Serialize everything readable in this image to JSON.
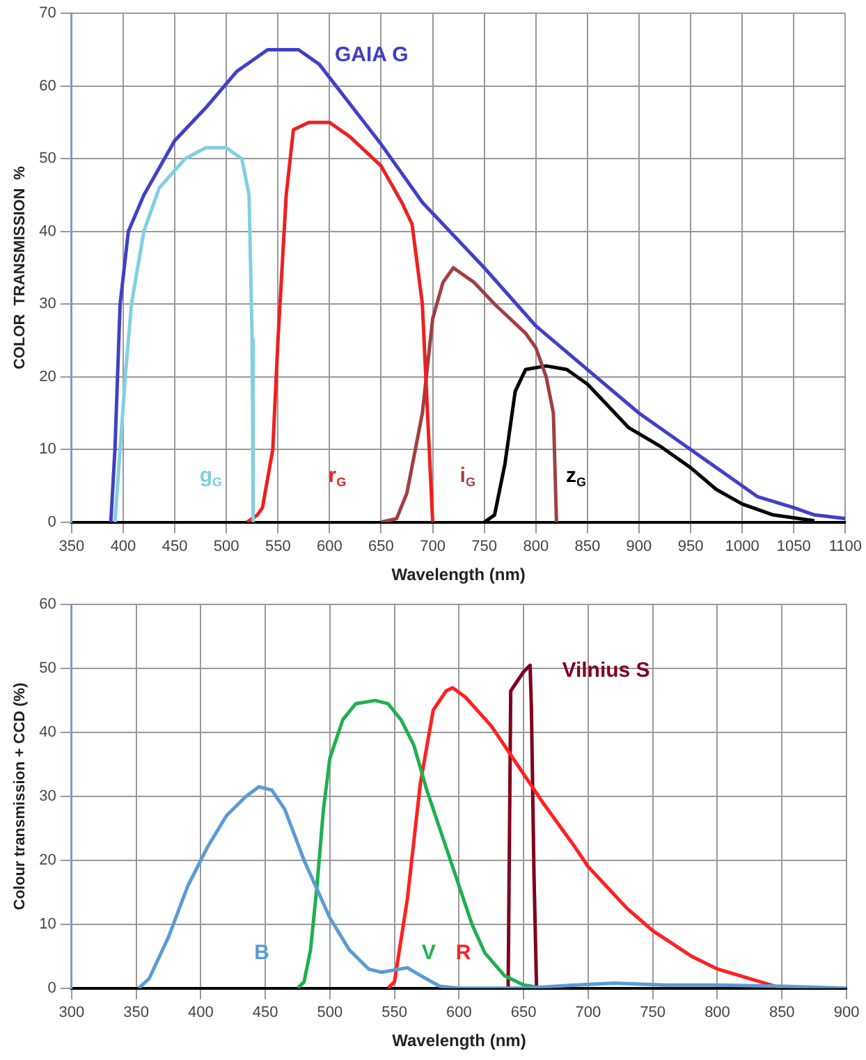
{
  "chart_data": [
    {
      "type": "line",
      "xlabel": "Wavelength (nm)",
      "ylabel": "COLOR  TRANSMISSION  %",
      "xlim": [
        350,
        1100
      ],
      "xticks": [
        350,
        400,
        450,
        500,
        550,
        600,
        650,
        700,
        750,
        800,
        850,
        900,
        950,
        1000,
        1050,
        1100
      ],
      "ylim": [
        0,
        70
      ],
      "yticks": [
        0,
        10,
        20,
        30,
        40,
        50,
        60,
        70
      ],
      "grid": true,
      "legend": false,
      "marker": "none",
      "series": [
        {
          "name": "GAIA G",
          "color": "#4040c8",
          "x": [
            388,
            392,
            397,
            405,
            420,
            450,
            480,
            510,
            540,
            570,
            590,
            650,
            690,
            750,
            800,
            850,
            900,
            950,
            1000,
            1015,
            1050,
            1070,
            1100
          ],
          "values": [
            0,
            10,
            30,
            40,
            45,
            52.5,
            57,
            62,
            65,
            65,
            63,
            52,
            44,
            35,
            27,
            21,
            15,
            10,
            5,
            3.5,
            2,
            1,
            0.5
          ]
        },
        {
          "name": "g$_{G}$",
          "color": "#80d0e0",
          "x": [
            392,
            397,
            402,
            408,
            420,
            435,
            460,
            480,
            500,
            515,
            522,
            525,
            526
          ],
          "values": [
            0,
            10,
            20,
            30,
            40,
            46,
            50,
            51.5,
            51.5,
            50,
            45,
            25,
            0
          ]
        },
        {
          "name": "r$_{G}$",
          "color": "#ee2020",
          "x": [
            520,
            530,
            535,
            545,
            550,
            558,
            565,
            580,
            600,
            620,
            650,
            670,
            680,
            690,
            695,
            700
          ],
          "values": [
            0,
            1,
            2,
            10,
            25,
            45,
            54,
            55,
            55,
            53,
            49,
            44,
            41,
            30,
            15,
            0
          ]
        },
        {
          "name": "i$_{G}$",
          "color": "#a04040",
          "x": [
            650,
            665,
            675,
            690,
            700,
            710,
            720,
            740,
            760,
            790,
            800,
            810,
            817,
            820
          ],
          "values": [
            0,
            0.5,
            4,
            15,
            28,
            33,
            35,
            33,
            30,
            26,
            24,
            20,
            15,
            0
          ]
        },
        {
          "name": "z$_{G}$",
          "color": "#000000",
          "x": [
            750,
            760,
            770,
            780,
            790,
            810,
            830,
            850,
            870,
            890,
            920,
            950,
            975,
            1000,
            1030,
            1070
          ],
          "values": [
            0,
            1,
            8,
            18,
            21,
            21.5,
            21,
            19,
            16,
            13,
            10.5,
            7.5,
            4.5,
            2.5,
            1,
            0.2
          ]
        }
      ]
    },
    {
      "type": "line",
      "xlabel": "Wavelength (nm)",
      "ylabel": "Colour transmission + CCD (%)",
      "xlim": [
        300,
        900
      ],
      "xticks": [
        300,
        350,
        400,
        450,
        500,
        550,
        600,
        650,
        700,
        750,
        800,
        850,
        900
      ],
      "ylim": [
        0,
        60
      ],
      "yticks": [
        0,
        10,
        20,
        30,
        40,
        50,
        60
      ],
      "grid": true,
      "legend": false,
      "marker": "none",
      "series": [
        {
          "name": "B",
          "color": "#5b9bd5",
          "x": [
            352,
            360,
            375,
            390,
            405,
            420,
            435,
            445,
            455,
            465,
            480,
            500,
            515,
            530,
            540,
            560,
            570,
            585,
            600,
            650,
            690,
            720,
            760,
            800,
            850,
            900
          ],
          "values": [
            0,
            1.5,
            8,
            16,
            22,
            27,
            30,
            31.5,
            31,
            28,
            20,
            11,
            6,
            3,
            2.5,
            3.2,
            2,
            0.3,
            0,
            0,
            0.5,
            0.8,
            0.5,
            0.5,
            0.3,
            0
          ]
        },
        {
          "name": "V",
          "color": "#20b050",
          "x": [
            475,
            480,
            485,
            490,
            495,
            500,
            510,
            520,
            535,
            545,
            555,
            565,
            575,
            590,
            600,
            610,
            620,
            635,
            650,
            665
          ],
          "values": [
            0,
            1,
            6,
            16,
            28,
            36,
            42,
            44.5,
            45,
            44.5,
            42,
            38,
            31,
            22,
            16,
            10,
            5.5,
            2,
            0.5,
            0
          ]
        },
        {
          "name": "R",
          "color": "#ff2020",
          "x": [
            545,
            550,
            560,
            570,
            580,
            590,
            595,
            605,
            625,
            645,
            665,
            690,
            700,
            730,
            750,
            780,
            800,
            850
          ],
          "values": [
            0,
            1,
            14,
            32,
            43.5,
            46.5,
            47,
            45.5,
            41,
            35,
            29,
            22,
            19,
            12.5,
            9,
            5,
            3,
            0
          ]
        },
        {
          "name": "Vilnius S",
          "color": "#800020",
          "x": [
            638,
            639,
            640,
            650,
            655,
            656,
            658,
            660
          ],
          "values": [
            0,
            23,
            46.5,
            49.5,
            50.5,
            44,
            18,
            0
          ]
        }
      ]
    }
  ]
}
